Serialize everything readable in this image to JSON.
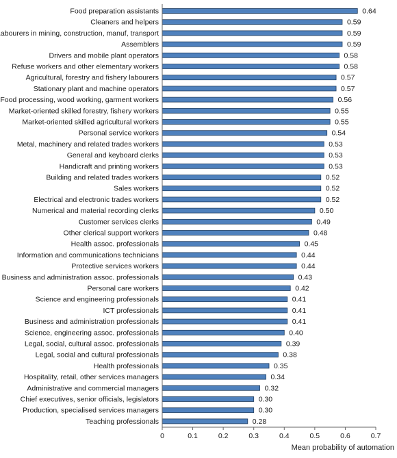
{
  "chart_data": {
    "type": "bar",
    "orientation": "horizontal",
    "categories": [
      "Food preparation assistants",
      "Cleaners and helpers",
      "Labourers in mining, construction, manuf, transport",
      "Assemblers",
      "Drivers and mobile plant operators",
      "Refuse workers and other elementary workers",
      "Agricultural, forestry and fishery labourers",
      "Stationary plant and machine operators",
      "Food processing, wood working, garment workers",
      "Market-oriented skilled forestry, fishery workers",
      "Market-oriented skilled agricultural workers",
      "Personal service workers",
      "Metal, machinery and related trades workers",
      "General and keyboard clerks",
      "Handicraft and printing workers",
      "Building and related trades workers",
      "Sales workers",
      "Electrical and electronic trades workers",
      "Numerical and material recording clerks",
      "Customer services clerks",
      "Other clerical support workers",
      "Health assoc. professionals",
      "Information and communications technicians",
      "Protective services workers",
      "Business and administration assoc. professionals",
      "Personal care workers",
      "Science and engineering professionals",
      "ICT professionals",
      "Business and administration professionals",
      "Science, engineering assoc. professionals",
      "Legal, social, cultural assoc. professionals",
      "Legal, social and cultural professionals",
      "Health professionals",
      "Hospitality, retail, other services managers",
      "Administrative and commercial managers",
      "Chief executives, senior officials, legislators",
      "Production, specialised services managers",
      "Teaching professionals"
    ],
    "values": [
      0.64,
      0.59,
      0.59,
      0.59,
      0.58,
      0.58,
      0.57,
      0.57,
      0.56,
      0.55,
      0.55,
      0.54,
      0.53,
      0.53,
      0.53,
      0.52,
      0.52,
      0.52,
      0.5,
      0.49,
      0.48,
      0.45,
      0.44,
      0.44,
      0.43,
      0.42,
      0.41,
      0.41,
      0.41,
      0.4,
      0.39,
      0.38,
      0.35,
      0.34,
      0.32,
      0.3,
      0.3,
      0.28
    ],
    "value_labels": [
      "0.64",
      "0.59",
      "0.59",
      "0.59",
      "0.58",
      "0.58",
      "0.57",
      "0.57",
      "0.56",
      "0.55",
      "0.55",
      "0.54",
      "0.53",
      "0.53",
      "0.53",
      "0.52",
      "0.52",
      "0.52",
      "0.50",
      "0.49",
      "0.48",
      "0.45",
      "0.44",
      "0.44",
      "0.43",
      "0.42",
      "0.41",
      "0.41",
      "0.41",
      "0.40",
      "0.39",
      "0.38",
      "0.35",
      "0.34",
      "0.32",
      "0.30",
      "0.30",
      "0.28"
    ],
    "xlabel": "Mean probability of automation",
    "xlim": [
      0,
      0.7
    ],
    "xticks": [
      "0",
      "0.1",
      "0.2",
      "0.3",
      "0.4",
      "0.5",
      "0.6",
      "0.7"
    ],
    "grid": false,
    "legend": "none",
    "colors": {
      "bar_fill": "#4f81bd",
      "bar_stroke": "#1f3b5c",
      "axis": "#666666",
      "text": "#1a1a1a"
    }
  }
}
